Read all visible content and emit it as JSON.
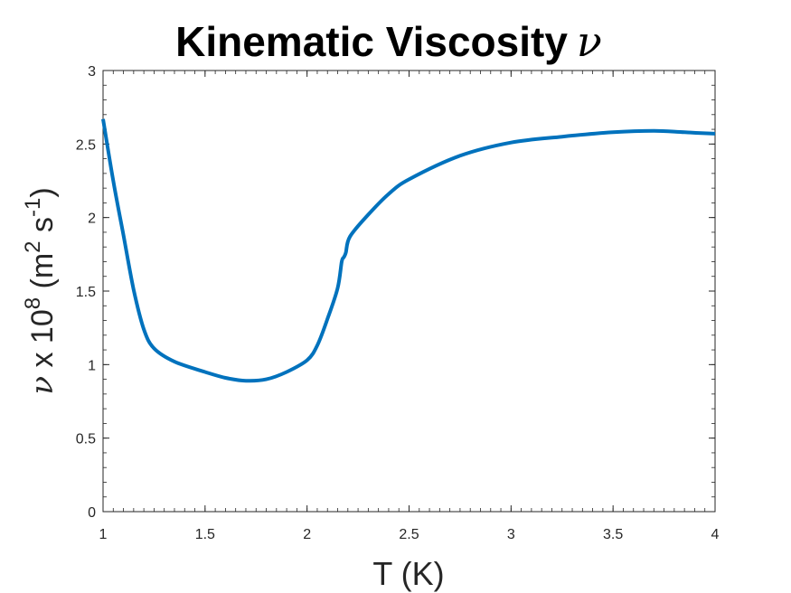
{
  "chart_data": {
    "type": "line",
    "title": "Kinematic Viscosity",
    "title_symbol": "ν",
    "xlabel": "T (K)",
    "ylabel": {
      "symbol": "ν",
      "text_a": " x 10",
      "exp_a": "8",
      "text_b": " (m",
      "exp_b": "2",
      "text_c": " s",
      "exp_c": "-1",
      "text_d": ")"
    },
    "xlim": [
      1,
      4
    ],
    "ylim": [
      0,
      3
    ],
    "xticks": [
      1,
      1.5,
      2,
      2.5,
      3,
      3.5,
      4
    ],
    "xtick_labels": [
      "1",
      "1.5",
      "2",
      "2.5",
      "3",
      "3.5",
      "4"
    ],
    "yticks": [
      0,
      0.5,
      1,
      1.5,
      2,
      2.5,
      3
    ],
    "ytick_labels": [
      "0",
      "0.5",
      "1",
      "1.5",
      "2",
      "2.5",
      "3"
    ],
    "grid": false,
    "series": [
      {
        "name": "nu",
        "color": "#0072BD",
        "x": [
          1.0,
          1.05,
          1.1,
          1.15,
          1.2,
          1.25,
          1.35,
          1.5,
          1.6,
          1.7,
          1.8,
          1.9,
          2.0,
          2.05,
          2.1,
          2.15,
          2.17,
          2.18,
          2.19,
          2.21,
          2.3,
          2.4,
          2.5,
          2.75,
          3.0,
          3.25,
          3.5,
          3.7,
          3.85,
          4.0
        ],
        "y": [
          2.67,
          2.25,
          1.88,
          1.51,
          1.24,
          1.11,
          1.02,
          0.95,
          0.91,
          0.89,
          0.9,
          0.95,
          1.03,
          1.13,
          1.31,
          1.52,
          1.7,
          1.73,
          1.76,
          1.87,
          2.02,
          2.16,
          2.26,
          2.42,
          2.51,
          2.55,
          2.58,
          2.59,
          2.58,
          2.57
        ]
      }
    ]
  }
}
